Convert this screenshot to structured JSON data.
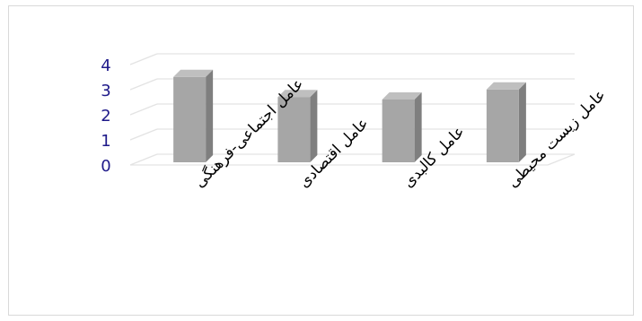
{
  "chart_data": {
    "type": "bar",
    "style": "3d-column",
    "categories": [
      "عامل اجتماعی-فرهنگی",
      "عامل اقتصادی",
      "عامل کالبدی",
      "عامل زیست محیطی"
    ],
    "series": [
      {
        "values": [
          3.4,
          2.6,
          2.5,
          2.9
        ]
      }
    ],
    "yticks": [
      "0",
      "1",
      "2",
      "3",
      "4"
    ],
    "ylim": [
      0,
      4
    ],
    "grid": true,
    "legend": "none",
    "colors": {
      "bar_front": "#a6a6a6",
      "bar_side": "#7f7f7f",
      "bar_top": "#bfbfbf",
      "grid": "#e3e3e3",
      "ytick": "#1f1a8a"
    }
  }
}
